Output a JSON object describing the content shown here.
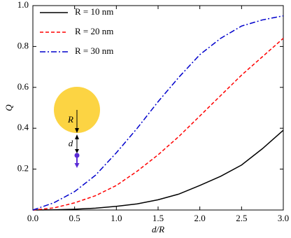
{
  "chart_data": {
    "type": "line",
    "x_label": "d/R",
    "y_label": "Q",
    "x": [
      0,
      0.25,
      0.5,
      0.75,
      1.0,
      1.25,
      1.5,
      1.75,
      2.0,
      2.25,
      2.5,
      2.75,
      3.0
    ],
    "series": [
      {
        "name": "R = 10 nm",
        "color": "#000000",
        "dash": "solid",
        "values": [
          0,
          0.001,
          0.004,
          0.009,
          0.018,
          0.03,
          0.05,
          0.078,
          0.12,
          0.165,
          0.22,
          0.3,
          0.39
        ]
      },
      {
        "name": "R = 20 nm",
        "color": "#ff0000",
        "dash": "dashed",
        "values": [
          0,
          0.01,
          0.035,
          0.07,
          0.12,
          0.19,
          0.27,
          0.36,
          0.46,
          0.56,
          0.66,
          0.75,
          0.84
        ]
      },
      {
        "name": "R = 30 nm",
        "color": "#0000cc",
        "dash": "dashdot",
        "values": [
          0,
          0.035,
          0.09,
          0.17,
          0.28,
          0.4,
          0.53,
          0.65,
          0.76,
          0.84,
          0.9,
          0.93,
          0.95
        ]
      }
    ],
    "xlim": [
      0,
      3
    ],
    "ylim": [
      0,
      1
    ],
    "xticks": [
      {
        "value": 0,
        "label": "0.0"
      },
      0.5,
      {
        "value": 1,
        "label": "1.0"
      },
      1.5,
      {
        "value": 2,
        "label": "2.0"
      },
      2.5,
      {
        "value": 3,
        "label": "3.0"
      }
    ],
    "yticks": [
      0.2,
      0.4,
      0.6,
      0.8,
      {
        "value": 1,
        "label": "1.0"
      }
    ],
    "legend": "upper left",
    "annotations": [
      "R",
      "d"
    ]
  }
}
